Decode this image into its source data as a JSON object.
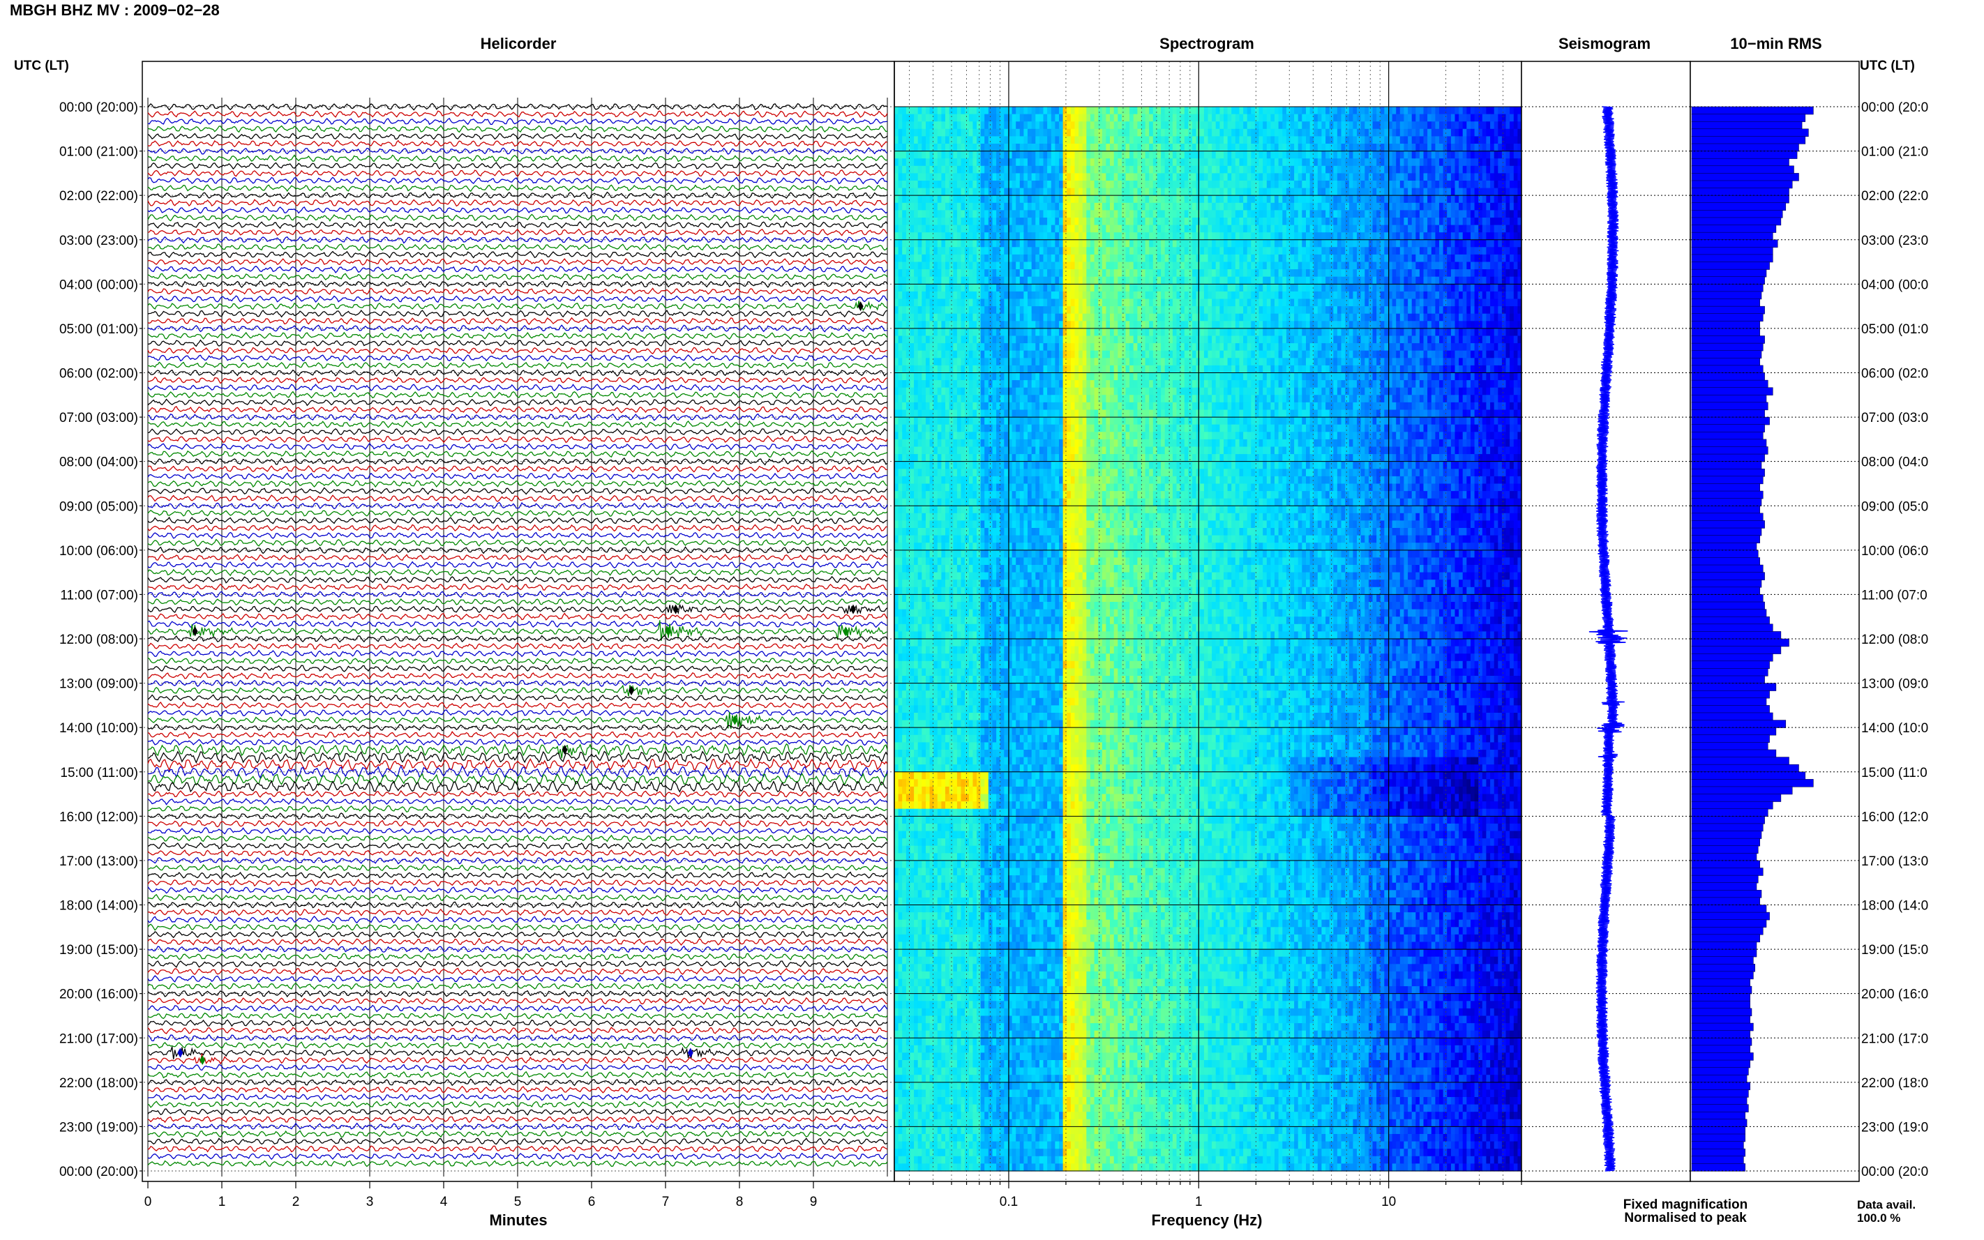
{
  "title": "MBGH BHZ MV : 2009−02−28",
  "left_axis_header": "UTC (LT)",
  "right_axis_header": "UTC (LT)",
  "panels": {
    "helicorder": "Helicorder",
    "spectrogram": "Spectrogram",
    "seismogram": "Seismogram",
    "rms": "10−min RMS"
  },
  "time_labels": [
    "00:00 (20:00)",
    "01:00 (21:00)",
    "02:00 (22:00)",
    "03:00 (23:00)",
    "04:00 (00:00)",
    "05:00 (01:00)",
    "06:00 (02:00)",
    "07:00 (03:00)",
    "08:00 (04:00)",
    "09:00 (05:00)",
    "10:00 (06:00)",
    "11:00 (07:00)",
    "12:00 (08:00)",
    "13:00 (09:00)",
    "14:00 (10:00)",
    "15:00 (11:00)",
    "16:00 (12:00)",
    "17:00 (13:00)",
    "18:00 (14:00)",
    "19:00 (15:00)",
    "20:00 (16:00)",
    "21:00 (17:00)",
    "22:00 (18:00)",
    "23:00 (19:00)",
    "00:00 (20:00)"
  ],
  "right_time_labels": [
    "00:00 (20:0",
    "01:00 (21:0",
    "02:00 (22:0",
    "03:00 (23:0",
    "04:00 (00:0",
    "05:00 (01:0",
    "06:00 (02:0",
    "07:00 (03:0",
    "08:00 (04:0",
    "09:00 (05:0",
    "10:00 (06:0",
    "11:00 (07:0",
    "12:00 (08:0",
    "13:00 (09:0",
    "14:00 (10:0",
    "15:00 (11:0",
    "16:00 (12:0",
    "17:00 (13:0",
    "18:00 (14:0",
    "19:00 (15:0",
    "20:00 (16:0",
    "21:00 (17:0",
    "22:00 (18:0",
    "23:00 (19:0",
    "00:00 (20:0"
  ],
  "legend": {
    "fixed": "Fixed magnification",
    "fixed_color": "#0000ff",
    "normalised": "Normalised to peak",
    "normalised_color": "#ff0000",
    "avail_label": "Data avail.",
    "avail_value": "100.0 %"
  },
  "chart_data": [
    {
      "type": "line",
      "name": "helicorder",
      "xlabel": "Minutes",
      "xlim": [
        0,
        10
      ],
      "x_ticks": [
        0,
        1,
        2,
        3,
        4,
        5,
        6,
        7,
        8,
        9
      ],
      "rows": 144,
      "trace_colors": [
        "#000000",
        "#cc0000",
        "#0000cc",
        "#008800"
      ],
      "events": [
        {
          "row": 27,
          "minute": 9.6,
          "color": "#000000",
          "amp": 1.0
        },
        {
          "row": 68,
          "minute": 7.1,
          "color": "#000000",
          "amp": 1.0
        },
        {
          "row": 68,
          "minute": 9.5,
          "color": "#000000",
          "amp": 1.0
        },
        {
          "row": 71,
          "minute": 0.6,
          "color": "#000000",
          "amp": 1.5
        },
        {
          "row": 71,
          "minute": 7.0,
          "color": "#008800",
          "amp": 2.2
        },
        {
          "row": 71,
          "minute": 9.4,
          "color": "#008800",
          "amp": 1.6
        },
        {
          "row": 79,
          "minute": 6.5,
          "color": "#000000",
          "amp": 1.3
        },
        {
          "row": 83,
          "minute": 7.9,
          "color": "#008800",
          "amp": 2.0
        },
        {
          "row": 87,
          "minute": 5.6,
          "color": "#000000",
          "amp": 1.2
        },
        {
          "row": 128,
          "minute": 0.4,
          "color": "#0000cc",
          "amp": 1.3
        },
        {
          "row": 128,
          "minute": 7.3,
          "color": "#0000cc",
          "amp": 1.2
        },
        {
          "row": 129,
          "minute": 0.7,
          "color": "#008800",
          "amp": 1.0
        }
      ]
    },
    {
      "type": "heatmap",
      "name": "spectrogram",
      "xlabel": "Frequency (Hz)",
      "x_scale": "log",
      "xlim": [
        0.025,
        50
      ],
      "x_tick_labels": [
        "0.1",
        "1",
        "10"
      ],
      "colormap": [
        "#000080",
        "#0000ff",
        "#0080ff",
        "#00e0ff",
        "#40ffc0",
        "#c0ff40",
        "#ffff00",
        "#ff8000",
        "#ff0000"
      ]
    },
    {
      "type": "line",
      "name": "seismogram"
    },
    {
      "type": "bar",
      "name": "rms",
      "values": [
        0.75,
        0.7,
        0.68,
        0.72,
        0.7,
        0.66,
        0.65,
        0.6,
        0.63,
        0.66,
        0.62,
        0.6,
        0.6,
        0.58,
        0.56,
        0.55,
        0.52,
        0.5,
        0.53,
        0.5,
        0.5,
        0.48,
        0.46,
        0.45,
        0.44,
        0.43,
        0.42,
        0.45,
        0.44,
        0.42,
        0.42,
        0.45,
        0.44,
        0.43,
        0.42,
        0.44,
        0.45,
        0.47,
        0.5,
        0.46,
        0.47,
        0.45,
        0.48,
        0.45,
        0.44,
        0.46,
        0.47,
        0.45,
        0.43,
        0.45,
        0.44,
        0.42,
        0.44,
        0.43,
        0.42,
        0.44,
        0.45,
        0.43,
        0.42,
        0.4,
        0.41,
        0.42,
        0.44,
        0.45,
        0.43,
        0.42,
        0.44,
        0.45,
        0.46,
        0.48,
        0.5,
        0.55,
        0.6,
        0.55,
        0.5,
        0.48,
        0.47,
        0.45,
        0.52,
        0.48,
        0.46,
        0.48,
        0.5,
        0.58,
        0.52,
        0.48,
        0.47,
        0.52,
        0.6,
        0.66,
        0.7,
        0.75,
        0.62,
        0.55,
        0.5,
        0.47,
        0.45,
        0.44,
        0.43,
        0.42,
        0.41,
        0.4,
        0.42,
        0.44,
        0.41,
        0.4,
        0.43,
        0.42,
        0.46,
        0.48,
        0.46,
        0.44,
        0.42,
        0.4,
        0.4,
        0.38,
        0.39,
        0.38,
        0.36,
        0.37,
        0.36,
        0.36,
        0.37,
        0.36,
        0.38,
        0.36,
        0.37,
        0.36,
        0.38,
        0.36,
        0.35,
        0.34,
        0.36,
        0.35,
        0.34,
        0.35,
        0.33,
        0.34,
        0.33,
        0.33,
        0.32,
        0.33,
        0.32,
        0.33
      ]
    }
  ]
}
